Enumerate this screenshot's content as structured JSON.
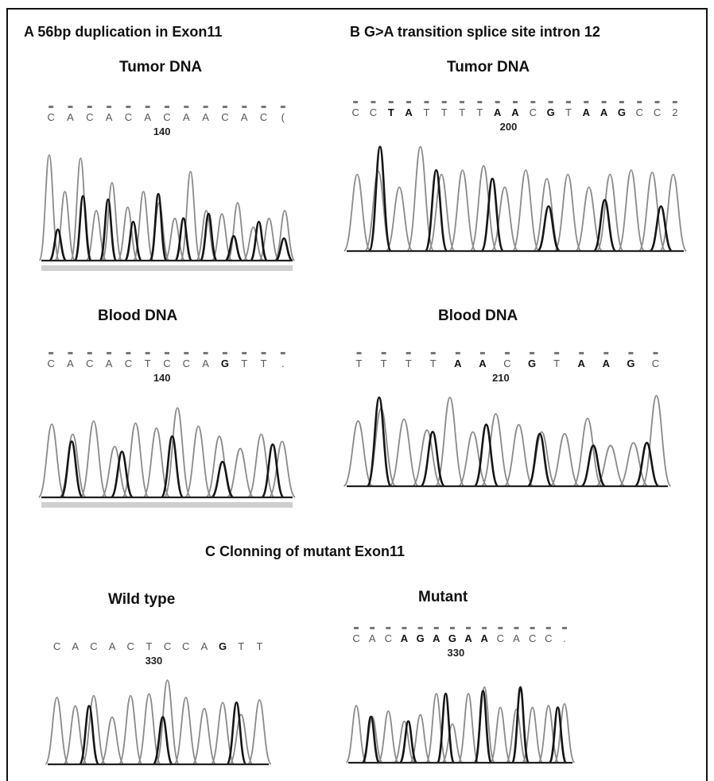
{
  "figure": {
    "header_a": "A 56bp duplication in Exon11",
    "header_b": "B  G>A transition splice site intron 12",
    "header_c": "C Clonning of mutant Exon11"
  },
  "panels": [
    {
      "id": "a-tumor",
      "label": "Tumor DNA",
      "sequence": [
        "C",
        "A",
        "C",
        "A",
        "C",
        "A",
        "C",
        "A",
        "A",
        "C",
        "A",
        "C",
        "("
      ],
      "bold": [],
      "position": "140",
      "dashes": true,
      "peaks": [
        0.95,
        0.62,
        0.92,
        0.45,
        0.7,
        0.48,
        0.62,
        0.52,
        0.38,
        0.8,
        0.45,
        0.42,
        0.52,
        0.3,
        0.38,
        0.45
      ],
      "dark_peaks": [
        0.28,
        0.58,
        0.55,
        0.35,
        0.6,
        0.38,
        0.42,
        0.22,
        0.35,
        0.2
      ]
    },
    {
      "id": "a-blood",
      "label": "Blood DNA",
      "sequence": [
        "C",
        "A",
        "C",
        "A",
        "C",
        "T",
        "C",
        "C",
        "A",
        "G",
        "T",
        "T",
        "."
      ],
      "bold": [
        9
      ],
      "position": "140",
      "dashes": true,
      "peaks": [
        0.72,
        0.62,
        0.75,
        0.5,
        0.73,
        0.68,
        0.88,
        0.7,
        0.6,
        0.48,
        0.62,
        0.55
      ],
      "dark_peaks": [
        0.55,
        0.45,
        0.6,
        0.35,
        0.52
      ]
    },
    {
      "id": "b-tumor",
      "label": "Tumor DNA",
      "sequence": [
        "C",
        "C",
        "T",
        "A",
        "T",
        "T",
        "T",
        "T",
        "A",
        "A",
        "C",
        "G",
        "T",
        "A",
        "A",
        "G",
        "C",
        "C",
        "2"
      ],
      "bold": [
        2,
        3,
        8,
        9,
        11,
        13,
        14,
        15
      ],
      "position": "200",
      "dashes": true,
      "peaks": [
        0.72,
        0.75,
        0.6,
        0.98,
        0.72,
        0.76,
        0.8,
        0.6,
        0.76,
        0.68,
        0.72,
        0.6,
        0.72,
        0.76,
        0.74,
        0.72
      ],
      "dark_peaks": [
        0.98,
        0.76,
        0.68,
        0.42,
        0.48,
        0.42
      ]
    },
    {
      "id": "b-blood",
      "label": "Blood  DNA",
      "sequence": [
        "T",
        "T",
        "T",
        "T",
        "A",
        "A",
        "C",
        "G",
        "T",
        "A",
        "A",
        "G",
        "C"
      ],
      "bold": [
        4,
        5,
        7,
        9,
        10,
        11
      ],
      "position": "210",
      "dashes": true,
      "peaks": [
        0.72,
        0.86,
        0.74,
        0.62,
        0.98,
        0.6,
        0.8,
        0.68,
        0.6,
        0.58,
        0.75,
        0.45,
        0.48,
        1.0
      ],
      "dark_peaks": [
        0.98,
        0.6,
        0.68,
        0.58,
        0.45,
        0.48
      ]
    },
    {
      "id": "c-wild",
      "label": "Wild type",
      "sequence": [
        "C",
        "A",
        "C",
        "A",
        "C",
        "T",
        "C",
        "C",
        "A",
        "G",
        "T",
        "T"
      ],
      "bold": [
        9
      ],
      "position": "330",
      "dashes": false,
      "peaks": [
        0.78,
        0.68,
        0.8,
        0.55,
        0.8,
        0.82,
        0.98,
        0.78,
        0.65,
        0.72,
        0.58,
        0.75
      ],
      "dark_peaks": [
        0.68,
        0.55,
        0.72
      ]
    },
    {
      "id": "c-mutant",
      "label": "Mutant",
      "sequence": [
        "C",
        "A",
        "C",
        "A",
        "G",
        "A",
        "G",
        "A",
        "A",
        "C",
        "A",
        "C",
        "C",
        "."
      ],
      "bold": [
        3,
        4,
        5,
        6,
        7,
        8
      ],
      "position": "330",
      "dashes": true,
      "peaks": [
        0.62,
        0.5,
        0.56,
        0.45,
        0.52,
        0.75,
        0.42,
        0.75,
        0.82,
        0.6,
        0.58,
        0.6,
        0.62,
        0.64
      ],
      "dark_peaks": [
        0.5,
        0.45,
        0.75,
        0.78,
        0.82,
        0.6
      ]
    }
  ]
}
